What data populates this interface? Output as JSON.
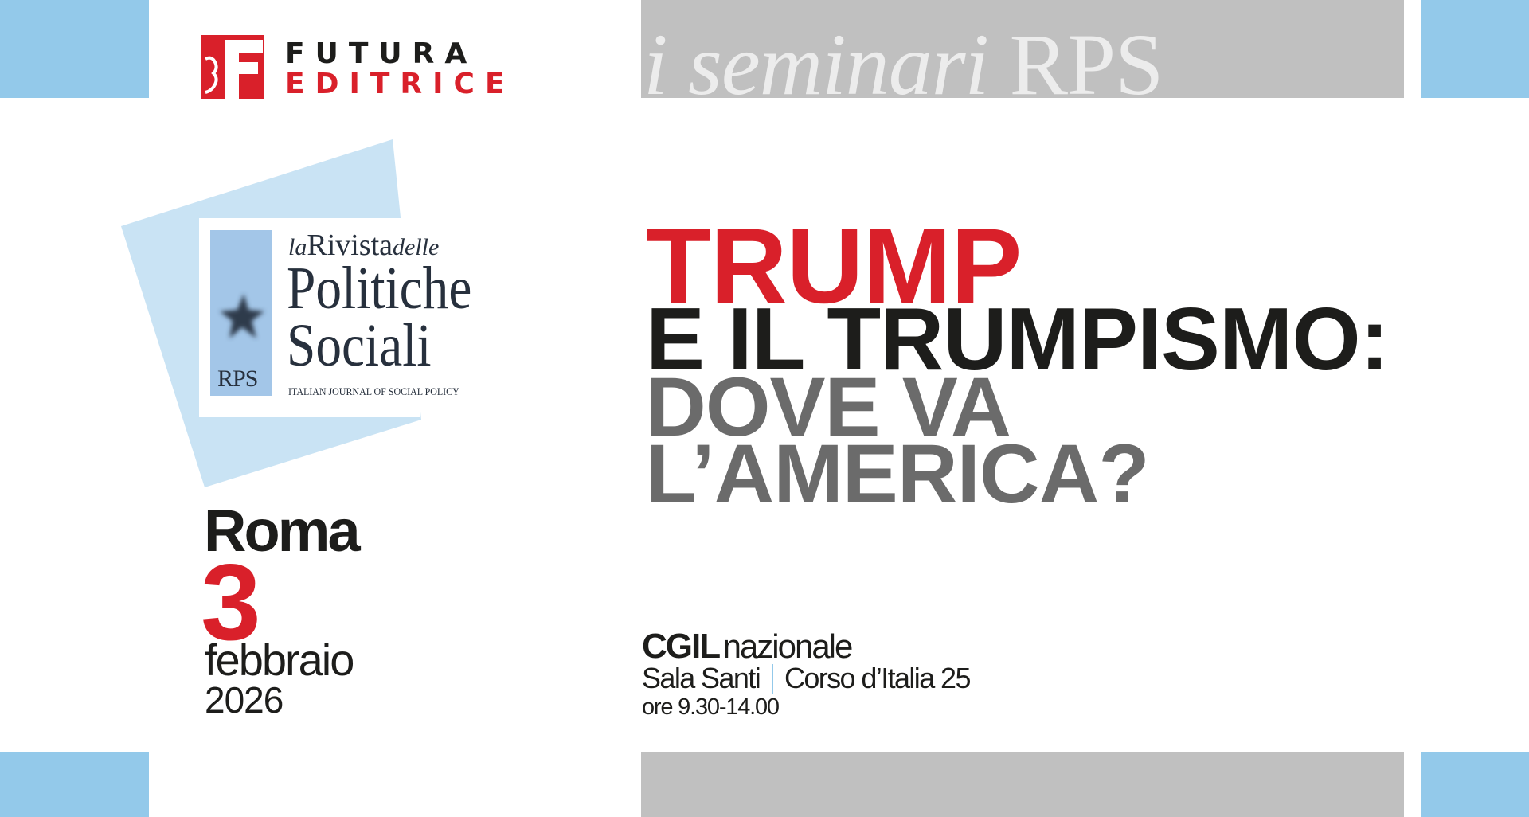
{
  "colors": {
    "accent_red": "#d9202a",
    "dark": "#1d1d1b",
    "mid_gray": "#6b6b6b",
    "light_blue": "#93c9ea",
    "pale_blue": "#c9e3f4",
    "bar_gray": "#c0c0c0"
  },
  "header": {
    "publisher": {
      "line1": "FUTURA",
      "line2": "EDITRICE"
    },
    "series": {
      "italic": "i seminari",
      "roman": "RPS"
    }
  },
  "journal_logo": {
    "prefix": "la",
    "word": "Rivista",
    "suffix": "delle",
    "line2": "Politiche",
    "line3": "Sociali",
    "subtitle": "ITALIAN JOURNAL OF SOCIAL POLICY",
    "abbr": "RPS",
    "icon": "star-icon"
  },
  "event": {
    "city": "Roma",
    "day": "3",
    "month": "febbraio",
    "year": "2026",
    "title": [
      "TRUMP",
      "E IL TRUMPISMO:",
      "DOVE VA",
      "L’AMERICA?"
    ],
    "venue_org": "CGIL",
    "venue_org_suffix": "nazionale",
    "room": "Sala Santi",
    "address": "Corso d’Italia 25",
    "hours": "ore 9.30-14.00"
  }
}
